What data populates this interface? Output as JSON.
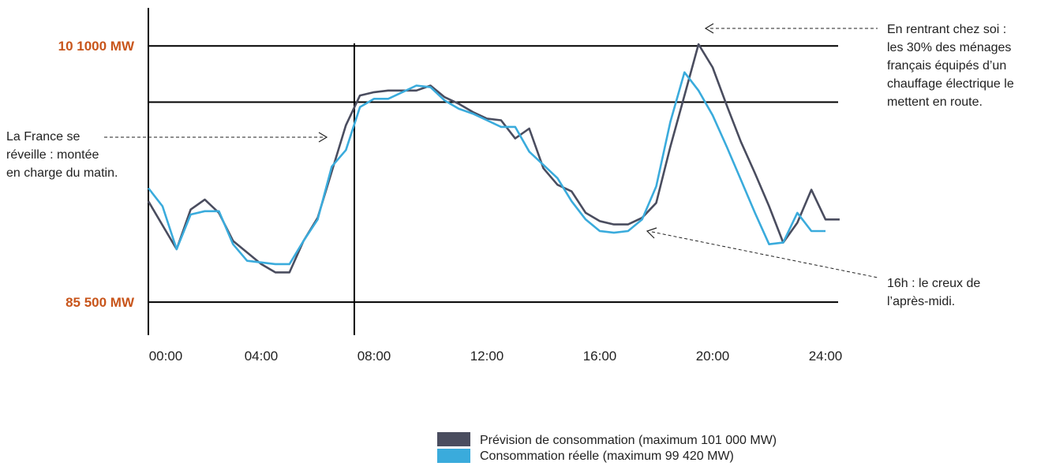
{
  "colors": {
    "forecast": "#4a4d5f",
    "actual": "#3aabdc",
    "label_accent": "#c8551b",
    "axis": "#000000"
  },
  "y_labels": [
    {
      "text": "10 1000 MW",
      "value": 101000
    },
    {
      "text": "85 500 MW",
      "value": 85500
    }
  ],
  "annotations": {
    "morning": [
      "La France se",
      "réveille : montée",
      "en charge du matin."
    ],
    "evening": [
      "En rentrant chez soi :",
      "les 30% des ménages",
      "français équipés d’un",
      "chauffage électrique le",
      "mettent en route."
    ],
    "afternoon": [
      "16h : le creux de",
      "l’après-midi."
    ]
  },
  "legend": [
    {
      "label": "Prévision de consommation (maximum 101 000 MW)",
      "color": "#4a4d5f"
    },
    {
      "label": "Consommation réelle (maximum 99 420 MW)",
      "color": "#3aabdc"
    }
  ],
  "chart_data": {
    "type": "line",
    "x_ticks": [
      "00:00",
      "04:00",
      "08:00",
      "12:00",
      "16:00",
      "20:00",
      "24:00"
    ],
    "xlim": [
      0,
      24
    ],
    "ylim": [
      83500,
      103300
    ],
    "hlines": [
      101000,
      97600,
      85500
    ],
    "vline_x": 7.3,
    "series": [
      {
        "name": "Prévision de consommation (maximum 101 000 MW)",
        "color": "#4a4d5f",
        "points": [
          [
            0,
            91600
          ],
          [
            1,
            88700
          ],
          [
            1.5,
            91100
          ],
          [
            2,
            91700
          ],
          [
            2.5,
            90900
          ],
          [
            3,
            89200
          ],
          [
            4,
            87800
          ],
          [
            4.5,
            87300
          ],
          [
            5,
            87300
          ],
          [
            5.5,
            89200
          ],
          [
            6,
            90600
          ],
          [
            6.5,
            93400
          ],
          [
            7,
            96200
          ],
          [
            7.5,
            98000
          ],
          [
            8,
            98200
          ],
          [
            8.5,
            98300
          ],
          [
            9,
            98300
          ],
          [
            9.5,
            98300
          ],
          [
            10,
            98600
          ],
          [
            10.5,
            97900
          ],
          [
            11,
            97500
          ],
          [
            11.5,
            97000
          ],
          [
            12,
            96600
          ],
          [
            12.5,
            96500
          ],
          [
            13,
            95400
          ],
          [
            13.5,
            96000
          ],
          [
            14,
            93600
          ],
          [
            14.5,
            92600
          ],
          [
            15,
            92200
          ],
          [
            15.5,
            90900
          ],
          [
            16,
            90400
          ],
          [
            16.5,
            90200
          ],
          [
            17,
            90200
          ],
          [
            17.5,
            90600
          ],
          [
            18,
            91500
          ],
          [
            18.5,
            94900
          ],
          [
            19,
            98000
          ],
          [
            19.5,
            101100
          ],
          [
            20,
            99700
          ],
          [
            20.5,
            97400
          ],
          [
            21,
            95200
          ],
          [
            21.5,
            93300
          ],
          [
            22,
            91300
          ],
          [
            22.5,
            89100
          ],
          [
            23,
            90300
          ],
          [
            23.5,
            92300
          ],
          [
            24,
            90500
          ],
          [
            24.5,
            90500
          ]
        ]
      },
      {
        "name": "Consommation réelle (maximum 99 420 MW)",
        "color": "#3aabdc",
        "points": [
          [
            0,
            92400
          ],
          [
            0.5,
            91300
          ],
          [
            1,
            88700
          ],
          [
            1.5,
            90800
          ],
          [
            2,
            91000
          ],
          [
            2.5,
            91000
          ],
          [
            3,
            89000
          ],
          [
            3.5,
            88000
          ],
          [
            4,
            87900
          ],
          [
            4.5,
            87800
          ],
          [
            5,
            87800
          ],
          [
            5.5,
            89200
          ],
          [
            6,
            90500
          ],
          [
            6.5,
            93700
          ],
          [
            7,
            94700
          ],
          [
            7.5,
            97300
          ],
          [
            8,
            97800
          ],
          [
            8.5,
            97800
          ],
          [
            9,
            98200
          ],
          [
            9.5,
            98600
          ],
          [
            10,
            98500
          ],
          [
            10.5,
            97700
          ],
          [
            11,
            97200
          ],
          [
            11.5,
            96900
          ],
          [
            12,
            96500
          ],
          [
            12.5,
            96100
          ],
          [
            13,
            96100
          ],
          [
            13.5,
            94600
          ],
          [
            14,
            93800
          ],
          [
            14.5,
            93000
          ],
          [
            15,
            91600
          ],
          [
            15.5,
            90500
          ],
          [
            16,
            89800
          ],
          [
            16.5,
            89700
          ],
          [
            17,
            89800
          ],
          [
            17.5,
            90500
          ],
          [
            18,
            92500
          ],
          [
            18.5,
            96400
          ],
          [
            19,
            99400
          ],
          [
            19.5,
            98300
          ],
          [
            20,
            96800
          ],
          [
            20.5,
            94900
          ],
          [
            21,
            92900
          ],
          [
            21.5,
            90900
          ],
          [
            22,
            89000
          ],
          [
            22.5,
            89100
          ],
          [
            23,
            90900
          ],
          [
            23.5,
            89800
          ],
          [
            24,
            89800
          ]
        ]
      }
    ]
  }
}
